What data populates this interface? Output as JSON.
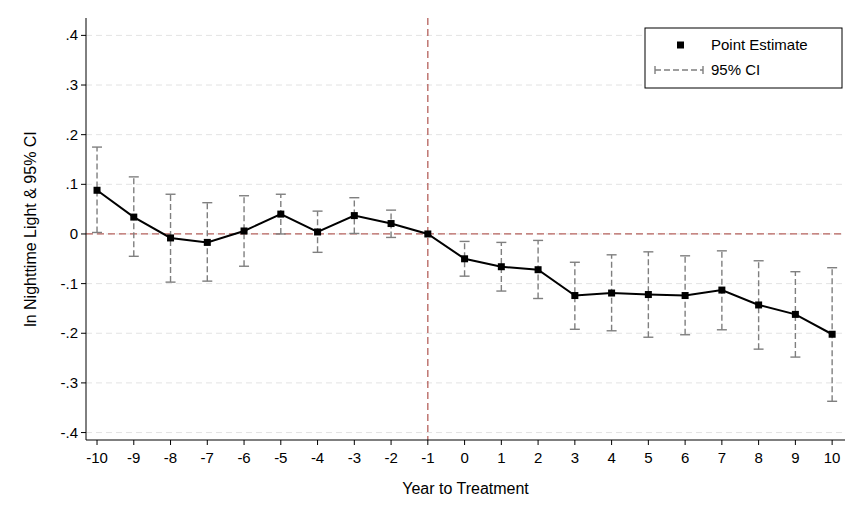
{
  "chart_data": {
    "type": "line",
    "x_label": "Year to Treatment",
    "y_label": "ln Nighttime Light & 95% CI",
    "x": [
      -10,
      -9,
      -8,
      -7,
      -6,
      -5,
      -4,
      -3,
      -2,
      -1,
      0,
      1,
      2,
      3,
      4,
      5,
      6,
      7,
      8,
      9,
      10
    ],
    "series": [
      {
        "name": "Point Estimate",
        "color": "#000000",
        "marker": "square",
        "line_style": "solid",
        "values": [
          0.088,
          0.034,
          -0.008,
          -0.017,
          0.006,
          0.04,
          0.004,
          0.037,
          0.021,
          0,
          -0.05,
          -0.066,
          -0.072,
          -0.124,
          -0.119,
          -0.122,
          -0.124,
          -0.113,
          -0.143,
          -0.162,
          -0.202
        ],
        "ci_lower": [
          0.003,
          -0.045,
          -0.097,
          -0.095,
          -0.065,
          0.0,
          -0.037,
          0.001,
          -0.007,
          null,
          -0.085,
          -0.115,
          -0.13,
          -0.192,
          -0.195,
          -0.208,
          -0.203,
          -0.193,
          -0.232,
          -0.248,
          -0.337
        ],
        "ci_upper": [
          0.175,
          0.115,
          0.08,
          0.063,
          0.077,
          0.08,
          0.046,
          0.073,
          0.048,
          null,
          -0.015,
          -0.017,
          -0.013,
          -0.057,
          -0.042,
          -0.036,
          -0.044,
          -0.034,
          -0.054,
          -0.076,
          -0.068
        ],
        "ci_name": "95% CI",
        "ci_color": "#7f7f7f"
      }
    ],
    "xlim": [
      -10.3,
      10.35
    ],
    "ylim": [
      -0.415,
      0.435
    ],
    "xticks": [
      -10,
      -9,
      -8,
      -7,
      -6,
      -5,
      -4,
      -3,
      -2,
      -1,
      0,
      1,
      2,
      3,
      4,
      5,
      6,
      7,
      8,
      9,
      10
    ],
    "yticks": [
      {
        "value": -0.4,
        "label": "-.4"
      },
      {
        "value": -0.3,
        "label": "-.3"
      },
      {
        "value": -0.2,
        "label": "-.2"
      },
      {
        "value": -0.1,
        "label": "-.1"
      },
      0,
      {
        "value": 0.1,
        "label": ".1"
      },
      {
        "value": 0.2,
        "label": ".2"
      },
      {
        "value": 0.3,
        "label": ".3"
      },
      {
        "value": 0.4,
        "label": ".4"
      }
    ],
    "reference_lines": [
      {
        "axis": "x",
        "value": -1,
        "color": "#b5615c"
      },
      {
        "axis": "y",
        "value": 0,
        "color": "#b5615c"
      }
    ],
    "grid": true,
    "legend": "top-right"
  }
}
